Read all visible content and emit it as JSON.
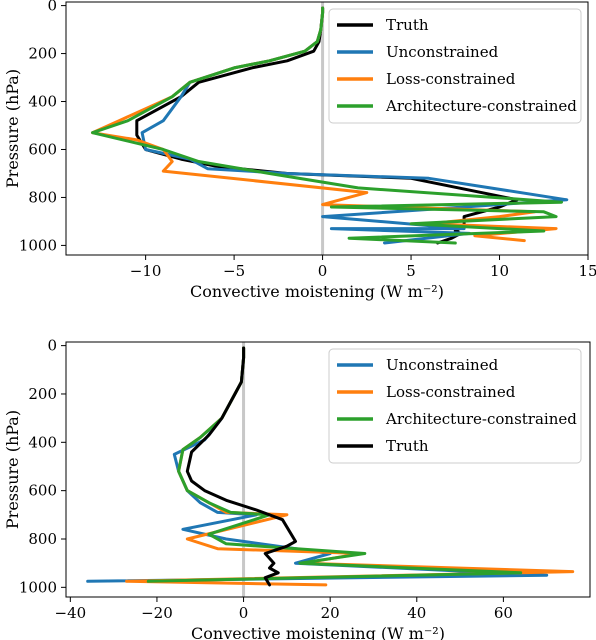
{
  "chart_data": [
    {
      "type": "line",
      "xlabel": "Convective moistening (W m⁻²)",
      "ylabel": "Pressure (hPa)",
      "xlim": [
        -14.5,
        15
      ],
      "ylim": [
        1040,
        -15
      ],
      "y_inverted": true,
      "xticks": [
        -10,
        -5,
        0,
        5,
        10,
        15
      ],
      "yticks": [
        0,
        200,
        400,
        600,
        800,
        1000
      ],
      "reference_line_x": 0,
      "legend_position": "upper-right",
      "legend_order": [
        "Truth",
        "Unconstrained",
        "Loss-constrained",
        "Architecture-constrained"
      ],
      "series": [
        {
          "name": "Truth",
          "color": "#000000",
          "x": [
            0,
            0,
            -0.1,
            -0.2,
            -0.5,
            -2,
            -4,
            -7,
            -8,
            -10.5,
            -10.5,
            -10,
            -9,
            -8,
            -6,
            -2,
            5,
            11,
            10,
            8,
            8,
            7.5,
            7.8,
            7.3,
            6.5
          ],
          "y": [
            10,
            30,
            100,
            150,
            190,
            230,
            260,
            320,
            380,
            480,
            540,
            600,
            620,
            640,
            670,
            700,
            720,
            810,
            840,
            880,
            920,
            940,
            950,
            970,
            990
          ]
        },
        {
          "name": "Unconstrained",
          "color": "#1f77b4",
          "x": [
            0,
            0,
            -0.1,
            -0.3,
            -1,
            -3,
            -5,
            -7.5,
            -8,
            -9,
            -10.2,
            -10,
            -7.5,
            -6.5,
            -2,
            6,
            13.8,
            8,
            0,
            8,
            0.5,
            8.3,
            3.5
          ],
          "y": [
            10,
            30,
            100,
            150,
            190,
            230,
            260,
            320,
            380,
            480,
            530,
            600,
            640,
            680,
            700,
            720,
            810,
            840,
            880,
            930,
            930,
            950,
            990
          ]
        },
        {
          "name": "Loss-constrained",
          "color": "#ff7f0e",
          "x": [
            0,
            0,
            -0.1,
            -0.3,
            -1,
            -3,
            -5,
            -7.5,
            -8.5,
            -11.5,
            -13,
            -10.5,
            -9,
            -8.5,
            -9,
            2.5,
            0,
            12,
            10,
            6,
            13.2,
            8.6,
            11.4
          ],
          "y": [
            10,
            30,
            100,
            150,
            190,
            230,
            260,
            320,
            380,
            480,
            530,
            560,
            600,
            650,
            690,
            780,
            830,
            860,
            880,
            910,
            930,
            960,
            980
          ]
        },
        {
          "name": "Architecture-constrained",
          "color": "#2ca02c",
          "x": [
            0,
            0,
            -0.1,
            -0.3,
            -1,
            -3,
            -5,
            -7.5,
            -8.5,
            -11,
            -13,
            -9,
            -7,
            -3,
            2,
            13.5,
            0.5,
            12.5,
            13.2,
            5,
            12.5,
            1.5,
            7.5
          ],
          "y": [
            10,
            30,
            100,
            150,
            190,
            230,
            260,
            320,
            380,
            480,
            530,
            600,
            650,
            700,
            760,
            820,
            840,
            860,
            880,
            910,
            940,
            970,
            990
          ]
        }
      ]
    },
    {
      "type": "line",
      "xlabel": "Convective moistening (W m⁻²)",
      "ylabel": "Pressure (hPa)",
      "xlim": [
        -41,
        80
      ],
      "ylim": [
        1040,
        -15
      ],
      "y_inverted": true,
      "xticks": [
        -40,
        -20,
        0,
        20,
        40,
        60
      ],
      "yticks": [
        0,
        200,
        400,
        600,
        800,
        1000
      ],
      "reference_line_x": 0,
      "legend_position": "upper-right",
      "legend_order": [
        "Unconstrained",
        "Loss-constrained",
        "Architecture-constrained",
        "Truth"
      ],
      "series": [
        {
          "name": "Unconstrained",
          "color": "#1f77b4",
          "x": [
            0,
            0,
            -0.5,
            -2,
            -5,
            -9,
            -16,
            -15,
            -13,
            -10,
            -6,
            3,
            -14,
            -4,
            20,
            12,
            70,
            -36
          ],
          "y": [
            10,
            50,
            150,
            200,
            300,
            390,
            450,
            520,
            600,
            650,
            690,
            700,
            760,
            800,
            860,
            900,
            950,
            975
          ]
        },
        {
          "name": "Loss-constrained",
          "color": "#ff7f0e",
          "x": [
            0,
            0,
            -0.5,
            -2,
            -5,
            -10,
            -14,
            -15,
            -13,
            -8,
            -4,
            10,
            -13,
            -6,
            27,
            14,
            76,
            -27,
            19
          ],
          "y": [
            10,
            50,
            150,
            200,
            300,
            380,
            430,
            520,
            600,
            650,
            690,
            700,
            800,
            840,
            860,
            900,
            935,
            975,
            990
          ]
        },
        {
          "name": "Architecture-constrained",
          "color": "#2ca02c",
          "x": [
            0,
            0,
            -0.5,
            -2,
            -5,
            -10,
            -14,
            -15,
            -13,
            -8,
            -3,
            6,
            -8,
            -4,
            28,
            13,
            64,
            -22
          ],
          "y": [
            10,
            50,
            150,
            200,
            300,
            380,
            430,
            520,
            600,
            650,
            690,
            700,
            780,
            820,
            860,
            900,
            940,
            975
          ]
        },
        {
          "name": "Truth",
          "color": "#000000",
          "x": [
            0,
            0,
            -0.5,
            -2,
            -5,
            -8,
            -12,
            -13,
            -12,
            -9,
            -4,
            3,
            9,
            12,
            10,
            5,
            7,
            6,
            8,
            5,
            6
          ],
          "y": [
            10,
            50,
            150,
            200,
            300,
            370,
            440,
            520,
            560,
            600,
            640,
            680,
            720,
            810,
            830,
            860,
            900,
            920,
            940,
            960,
            990
          ]
        }
      ]
    }
  ]
}
